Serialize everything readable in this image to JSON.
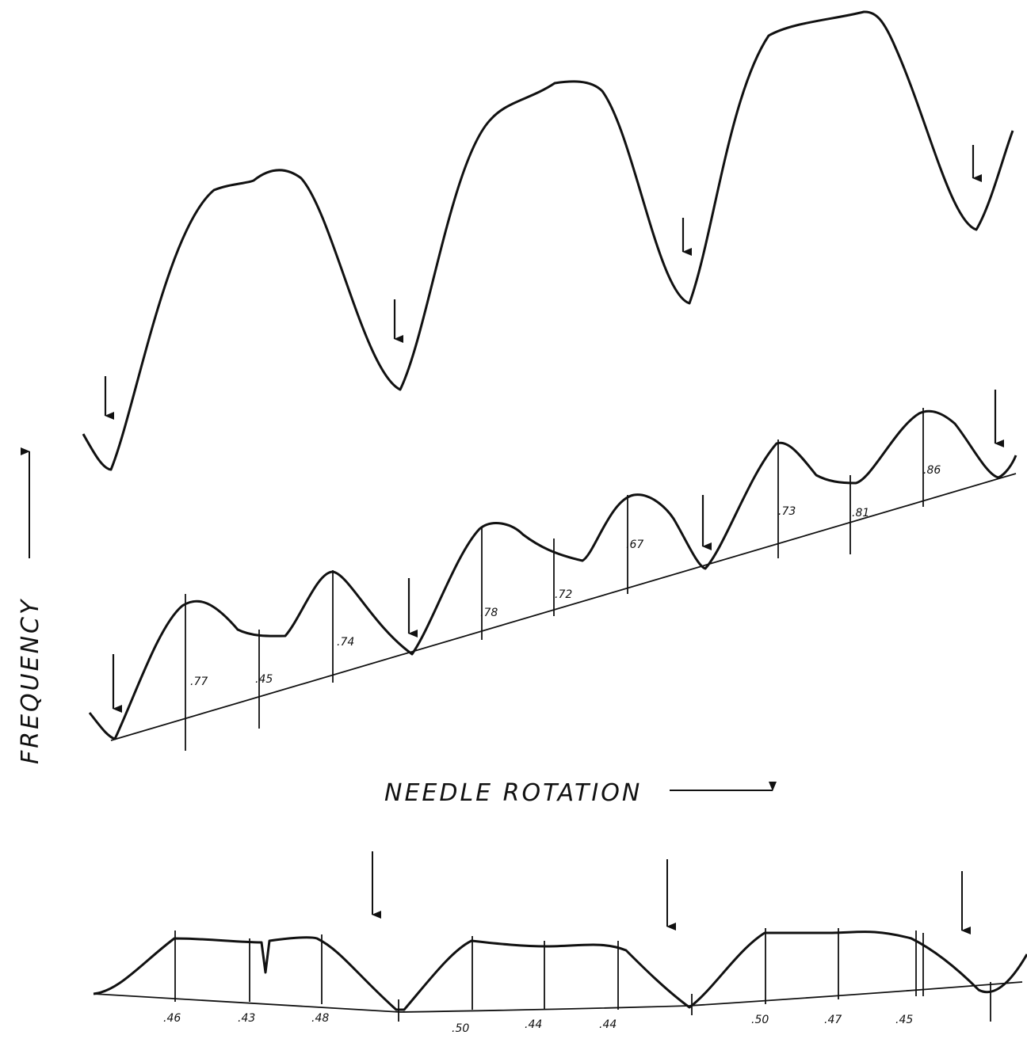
{
  "axis_labels": {
    "y": "FREQUENCY",
    "x": "NEEDLE ROTATION"
  },
  "middle_trace": {
    "labels": [
      ".77",
      ".45",
      ".74",
      ".78",
      ".72",
      ".67",
      ".73",
      ".81",
      ".86"
    ]
  },
  "bottom_trace": {
    "labels": [
      ".46",
      ".43",
      ".48",
      ".50",
      ".44",
      ".44",
      ".50",
      ".47",
      ".45"
    ]
  }
}
